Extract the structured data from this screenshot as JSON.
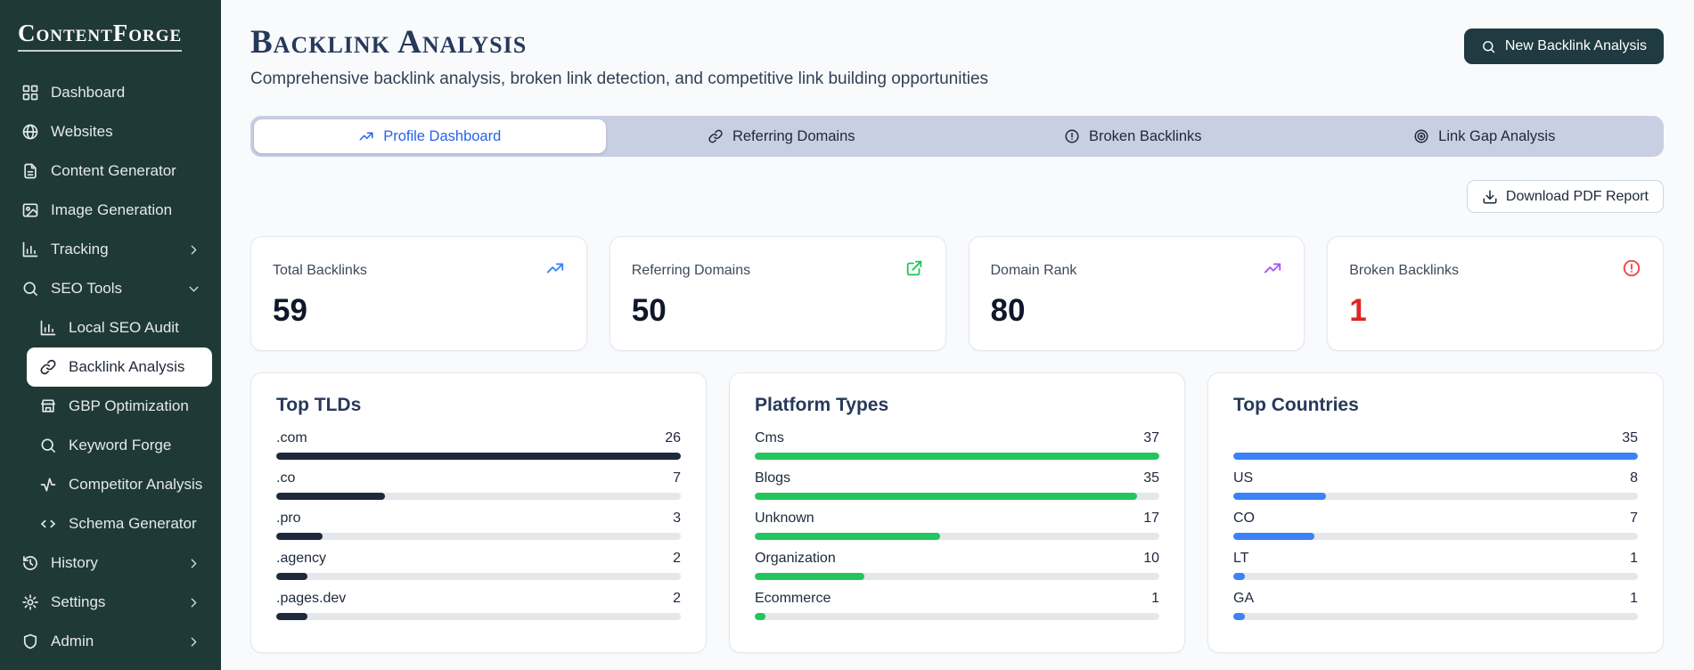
{
  "app": {
    "name": "ContentForge"
  },
  "sidebar": {
    "items": [
      {
        "label": "Dashboard",
        "icon": "grid"
      },
      {
        "label": "Websites",
        "icon": "globe"
      },
      {
        "label": "Content Generator",
        "icon": "file-text"
      },
      {
        "label": "Image Generation",
        "icon": "image"
      },
      {
        "label": "Tracking",
        "icon": "bar-chart",
        "chevron": "right"
      },
      {
        "label": "SEO Tools",
        "icon": "search",
        "chevron": "down"
      },
      {
        "label": "Local SEO Audit",
        "icon": "bar-chart",
        "sub": true
      },
      {
        "label": "Backlink Analysis",
        "icon": "link",
        "sub": true,
        "active": true
      },
      {
        "label": "GBP Optimization",
        "icon": "store",
        "sub": true
      },
      {
        "label": "Keyword Forge",
        "icon": "search",
        "sub": true
      },
      {
        "label": "Competitor Analysis",
        "icon": "activity",
        "sub": true
      },
      {
        "label": "Schema Generator",
        "icon": "code",
        "sub": true
      },
      {
        "label": "History",
        "icon": "history",
        "chevron": "right"
      },
      {
        "label": "Settings",
        "icon": "settings",
        "chevron": "right"
      },
      {
        "label": "Admin",
        "icon": "shield",
        "chevron": "right"
      }
    ]
  },
  "header": {
    "title": "Backlink Analysis",
    "subtitle": "Comprehensive backlink analysis, broken link detection, and competitive link building opportunities",
    "new_analysis_button": "New Backlink Analysis"
  },
  "tabs": [
    {
      "label": "Profile Dashboard",
      "icon": "trending-up",
      "active": true
    },
    {
      "label": "Referring Domains",
      "icon": "link",
      "active": false
    },
    {
      "label": "Broken Backlinks",
      "icon": "alert-circle",
      "active": false
    },
    {
      "label": "Link Gap Analysis",
      "icon": "target",
      "active": false
    }
  ],
  "toolbar": {
    "download_label": "Download PDF Report"
  },
  "stats": [
    {
      "label": "Total Backlinks",
      "value": "59",
      "icon": "trending-up",
      "icon_color": "#3b82f6"
    },
    {
      "label": "Referring Domains",
      "value": "50",
      "icon": "external-link",
      "icon_color": "#22c55e"
    },
    {
      "label": "Domain Rank",
      "value": "80",
      "icon": "trending-up",
      "icon_color": "#a855f7"
    },
    {
      "label": "Broken Backlinks",
      "value": "1",
      "icon": "alert-circle",
      "icon_color": "#ef4444",
      "value_color": "#dc2626"
    }
  ],
  "chart_data": [
    {
      "type": "bar",
      "title": "Top TLDs",
      "categories": [
        ".com",
        ".co",
        ".pro",
        ".agency",
        ".pages.dev"
      ],
      "values": [
        26,
        7,
        3,
        2,
        2
      ],
      "bar_color": "#1e293b",
      "xlim": [
        0,
        26
      ],
      "legend": "none",
      "grid": false
    },
    {
      "type": "bar",
      "title": "Platform Types",
      "categories": [
        "Cms",
        "Blogs",
        "Unknown",
        "Organization",
        "Ecommerce"
      ],
      "values": [
        37,
        35,
        17,
        10,
        1
      ],
      "bar_color": "#22c55e",
      "xlim": [
        0,
        37
      ],
      "legend": "none",
      "grid": false
    },
    {
      "type": "bar",
      "title": "Top Countries",
      "categories": [
        "",
        "US",
        "CO",
        "LT",
        "GA"
      ],
      "values": [
        35,
        8,
        7,
        1,
        1
      ],
      "bar_color": "#3b82f6",
      "xlim": [
        0,
        35
      ],
      "legend": "none",
      "grid": false
    }
  ]
}
